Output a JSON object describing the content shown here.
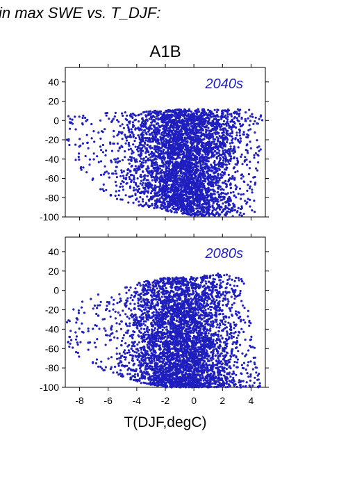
{
  "figure": {
    "heading": "in max SWE vs. T_DJF:",
    "scenario": "A1B",
    "xlabel": "T(DJF,degC)"
  },
  "colors": {
    "points": "#1f1fbf",
    "panel_label": "#1f1fbf",
    "axis": "#000000"
  },
  "chart_data": [
    {
      "type": "scatter",
      "title": "2040s",
      "xlim": [
        -9,
        5
      ],
      "ylim": [
        -100,
        55
      ],
      "xticks": [
        -8,
        -6,
        -4,
        -2,
        0,
        2,
        4
      ],
      "yticks": [
        -100,
        -80,
        -60,
        -40,
        -20,
        0,
        20,
        40
      ],
      "grid": false,
      "points_note": "dense cloud, ~thousands of points",
      "y_upper_envelope": [
        [
          -8.5,
          5
        ],
        [
          -6,
          8
        ],
        [
          -4,
          9
        ],
        [
          -2,
          11
        ],
        [
          0,
          12
        ],
        [
          2,
          11
        ],
        [
          3.5,
          13
        ],
        [
          4.7,
          7
        ]
      ],
      "y_lower_envelope": [
        [
          -9,
          -20
        ],
        [
          -8,
          -50
        ],
        [
          -6,
          -80
        ],
        [
          -4,
          -88
        ],
        [
          -2,
          -94
        ],
        [
          0,
          -99
        ],
        [
          2,
          -100
        ],
        [
          4,
          -99
        ]
      ]
    },
    {
      "type": "scatter",
      "title": "2080s",
      "xlim": [
        -9,
        5
      ],
      "ylim": [
        -100,
        55
      ],
      "xticks": [
        -8,
        -6,
        -4,
        -2,
        0,
        2,
        4
      ],
      "yticks": [
        -100,
        -80,
        -60,
        -40,
        -20,
        0,
        20,
        40
      ],
      "grid": false,
      "y_upper_envelope": [
        [
          -8.5,
          -15
        ],
        [
          -6,
          0
        ],
        [
          -4,
          8
        ],
        [
          -2,
          13
        ],
        [
          0,
          14
        ],
        [
          2,
          18
        ],
        [
          3.5,
          12
        ],
        [
          4.7,
          -100
        ]
      ],
      "y_lower_envelope": [
        [
          -9,
          -55
        ],
        [
          -8,
          -70
        ],
        [
          -6,
          -85
        ],
        [
          -4,
          -95
        ],
        [
          -2,
          -100
        ],
        [
          0,
          -100
        ],
        [
          2,
          -100
        ],
        [
          4,
          -100
        ]
      ]
    }
  ]
}
